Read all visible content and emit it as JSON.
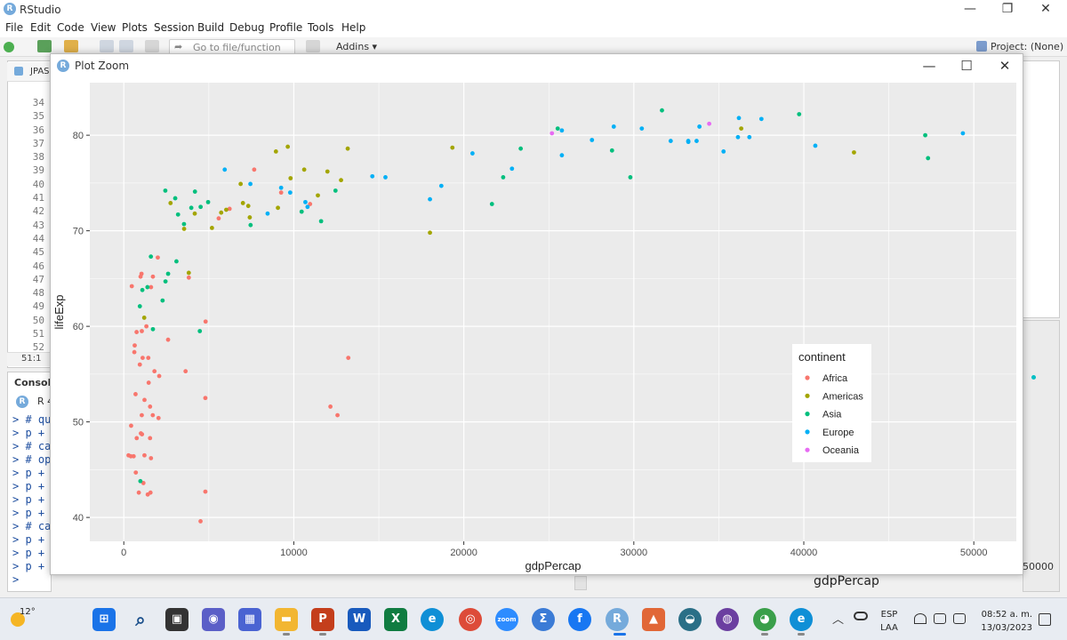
{
  "app": {
    "title": "RStudio",
    "logo_letter": "R",
    "window_controls": [
      "—",
      "❐",
      "✕"
    ]
  },
  "menu": [
    "File",
    "Edit",
    "Code",
    "View",
    "Plots",
    "Session",
    "Build",
    "Debug",
    "Profile",
    "Tools",
    "Help"
  ],
  "toolbar": {
    "goto_placeholder": "Go to file/function",
    "addins": "Addins ▾",
    "project": "Project: (None) ▾"
  },
  "editor": {
    "tab_label": "JPAS",
    "line_numbers": [
      "34",
      "35",
      "36",
      "37",
      "38",
      "39",
      "40",
      "41",
      "42",
      "43",
      "44",
      "45",
      "46",
      "47",
      "48",
      "49",
      "50",
      "51",
      "52"
    ],
    "cursor_position": "51:1"
  },
  "console": {
    "tab_label": "Console",
    "r_version": "R 4",
    "lines": [
      "> # qu",
      "> p +",
      "> # ca",
      "> # op",
      "> p +",
      "> p +",
      "> p +",
      "> p +",
      "> # ca",
      "> p +",
      "> p +",
      "> p +"
    ],
    "prompt": ">"
  },
  "background_plot": {
    "x_tick": "50000",
    "x_label": "gdpPercap"
  },
  "zoom_window": {
    "title": "Plot Zoom",
    "controls": [
      "—",
      "☐",
      "✕"
    ]
  },
  "colors": {
    "Africa": "#F8766D",
    "Americas": "#A3A500",
    "Asia": "#00BF7D",
    "Europe": "#00B0F6",
    "Oceania": "#E76BF3",
    "panel_bg": "#EBEBEB",
    "grid": "#FFFFFF"
  },
  "chart_data": {
    "type": "scatter",
    "xlabel": "gdpPercap",
    "ylabel": "lifeExp",
    "xlim": [
      -2000,
      52500
    ],
    "ylim": [
      37.5,
      85.5
    ],
    "xticks": [
      0,
      10000,
      20000,
      30000,
      40000,
      50000
    ],
    "yticks": [
      40,
      50,
      60,
      70,
      80
    ],
    "grid": true,
    "legend": {
      "title": "continent",
      "position": "right-inside",
      "entries": [
        "Africa",
        "Americas",
        "Asia",
        "Europe",
        "Oceania"
      ]
    },
    "series": [
      {
        "name": "Africa",
        "points": [
          [
            6223,
            72.3
          ],
          [
            4797,
            42.7
          ],
          [
            1441,
            56.7
          ],
          [
            12570,
            50.7
          ],
          [
            1217,
            52.3
          ],
          [
            430,
            49.6
          ],
          [
            2042,
            50.4
          ],
          [
            706,
            44.7
          ],
          [
            1704,
            50.7
          ],
          [
            986,
            65.2
          ],
          [
            277,
            46.5
          ],
          [
            3633,
            55.3
          ],
          [
            1544,
            48.3
          ],
          [
            2082,
            54.8
          ],
          [
            5581,
            71.3
          ],
          [
            12154,
            51.6
          ],
          [
            641,
            58.0
          ],
          [
            691,
            52.9
          ],
          [
            13206,
            56.7
          ],
          [
            753,
            59.4
          ],
          [
            1328,
            60.0
          ],
          [
            943,
            56.0
          ],
          [
            579,
            46.4
          ],
          [
            1463,
            54.1
          ],
          [
            1570,
            42.6
          ],
          [
            415,
            46.4
          ],
          [
            9254,
            74.0
          ],
          [
            1042,
            65.5
          ],
          [
            759,
            48.3
          ],
          [
            1545,
            51.6
          ],
          [
            4514,
            39.6
          ],
          [
            620,
            57.3
          ],
          [
            1803,
            55.3
          ],
          [
            470,
            64.2
          ],
          [
            10957,
            72.8
          ],
          [
            2605,
            58.6
          ],
          [
            4797,
            52.5
          ],
          [
            1060,
            59.5
          ],
          [
            1108,
            56.7
          ],
          [
            883,
            42.6
          ],
          [
            1598,
            46.2
          ],
          [
            1712,
            65.2
          ],
          [
            7670,
            76.4
          ],
          [
            1057,
            50.7
          ],
          [
            1602,
            64.1
          ],
          [
            1215,
            46.5
          ],
          [
            1407,
            42.4
          ],
          [
            1154,
            43.6
          ],
          [
            4811,
            60.5
          ],
          [
            1999,
            67.2
          ],
          [
            3824,
            65.1
          ],
          [
            1004,
            48.8
          ],
          [
            1070,
            48.7
          ]
        ]
      },
      {
        "name": "Americas",
        "points": [
          [
            12779,
            75.3
          ],
          [
            3822,
            65.6
          ],
          [
            9066,
            72.4
          ],
          [
            36319,
            80.7
          ],
          [
            13172,
            78.6
          ],
          [
            7007,
            72.9
          ],
          [
            9645,
            78.8
          ],
          [
            8948,
            78.3
          ],
          [
            6025,
            72.2
          ],
          [
            6873,
            74.9
          ],
          [
            5728,
            71.9
          ],
          [
            5186,
            70.3
          ],
          [
            1201,
            60.9
          ],
          [
            3548,
            70.2
          ],
          [
            7321,
            72.6
          ],
          [
            11978,
            76.2
          ],
          [
            2749,
            72.9
          ],
          [
            9809,
            75.5
          ],
          [
            4173,
            71.8
          ],
          [
            7409,
            71.4
          ],
          [
            19329,
            78.7
          ],
          [
            18009,
            69.8
          ],
          [
            42952,
            78.2
          ],
          [
            10611,
            76.4
          ],
          [
            11416,
            73.7
          ]
        ]
      },
      {
        "name": "Asia",
        "points": [
          [
            975,
            43.8
          ],
          [
            29796,
            75.6
          ],
          [
            1391,
            64.1
          ],
          [
            1713,
            59.7
          ],
          [
            4959,
            73.0
          ],
          [
            39725,
            82.2
          ],
          [
            2452,
            64.7
          ],
          [
            3541,
            70.7
          ],
          [
            11606,
            71.0
          ],
          [
            4471,
            59.5
          ],
          [
            25523,
            80.7
          ],
          [
            31656,
            82.6
          ],
          [
            4519,
            72.5
          ],
          [
            1593,
            67.3
          ],
          [
            23348,
            78.6
          ],
          [
            47307,
            77.6
          ],
          [
            10461,
            72.0
          ],
          [
            12452,
            74.2
          ],
          [
            3096,
            66.8
          ],
          [
            944,
            62.1
          ],
          [
            1091,
            63.8
          ],
          [
            22316,
            75.6
          ],
          [
            2606,
            65.5
          ],
          [
            3190,
            71.7
          ],
          [
            21655,
            72.8
          ],
          [
            47143,
            80.0
          ],
          [
            3970,
            72.4
          ],
          [
            4185,
            74.1
          ],
          [
            28718,
            78.4
          ],
          [
            7458,
            70.6
          ],
          [
            2442,
            74.2
          ],
          [
            3025,
            73.4
          ],
          [
            2281,
            62.7
          ]
        ]
      },
      {
        "name": "Europe",
        "points": [
          [
            5937,
            76.4
          ],
          [
            36126,
            79.8
          ],
          [
            33693,
            79.4
          ],
          [
            7446,
            74.9
          ],
          [
            10681,
            73.0
          ],
          [
            14619,
            75.7
          ],
          [
            22833,
            76.5
          ],
          [
            35278,
            78.3
          ],
          [
            33207,
            79.3
          ],
          [
            30470,
            80.7
          ],
          [
            32170,
            79.4
          ],
          [
            27538,
            79.5
          ],
          [
            18009,
            73.3
          ],
          [
            36181,
            81.8
          ],
          [
            40676,
            78.9
          ],
          [
            25768,
            80.5
          ],
          [
            9254,
            74.5
          ],
          [
            36798,
            79.8
          ],
          [
            49357,
            80.2
          ],
          [
            15390,
            75.6
          ],
          [
            20510,
            78.1
          ],
          [
            10808,
            72.5
          ],
          [
            9786,
            74.0
          ],
          [
            18678,
            74.7
          ],
          [
            25768,
            77.9
          ],
          [
            28821,
            80.9
          ],
          [
            33860,
            80.9
          ],
          [
            37506,
            81.7
          ],
          [
            8458,
            71.8
          ],
          [
            33203,
            79.4
          ]
        ]
      },
      {
        "name": "Oceania",
        "points": [
          [
            34435,
            81.2
          ],
          [
            25185,
            80.2
          ]
        ]
      }
    ]
  },
  "taskbar": {
    "weather_temp": "12°",
    "apps": [
      "⊞",
      "⌕",
      "▣",
      "◉",
      "▦",
      "▬",
      "P",
      "W",
      "X",
      "e",
      "◎",
      "zoom",
      "Σ",
      "f",
      "R",
      "▲",
      "◒",
      "◍",
      "◕",
      "e"
    ],
    "lang": "ESP\nLAA",
    "time": "08:52 a. m.",
    "date": "13/03/2023"
  }
}
